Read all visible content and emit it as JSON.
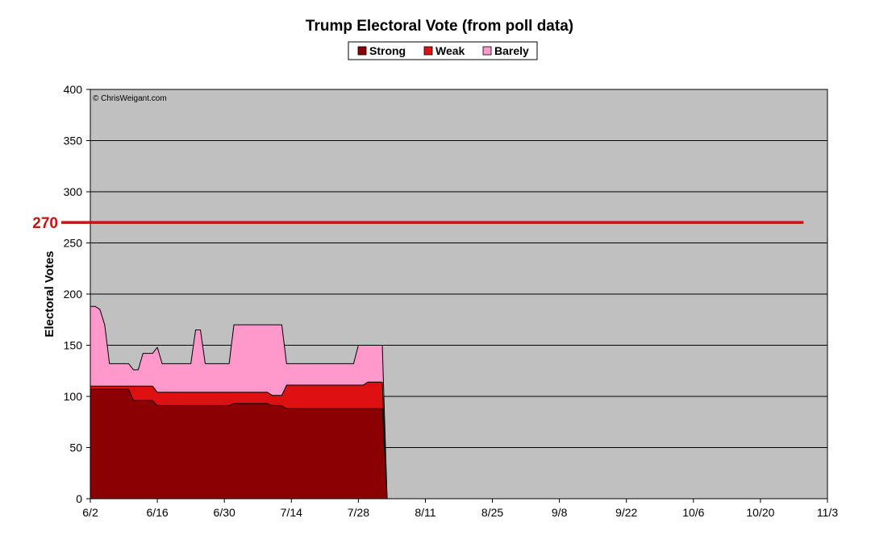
{
  "chart_data": {
    "type": "area",
    "title": "Trump Electoral Vote (from poll data)",
    "ylabel": "Electoral Votes",
    "xlabel": "",
    "watermark": "© ChrisWeigant.com",
    "ylim": [
      0,
      400
    ],
    "yticks": [
      "0",
      "50",
      "100",
      "150",
      "200",
      "250",
      "300",
      "350",
      "400"
    ],
    "xlim": [
      "2024-06-02",
      "2024-11-03"
    ],
    "xticks": [
      {
        "date": "2024-06-02",
        "label": "6/2"
      },
      {
        "date": "2024-06-16",
        "label": "6/16"
      },
      {
        "date": "2024-06-30",
        "label": "6/30"
      },
      {
        "date": "2024-07-14",
        "label": "7/14"
      },
      {
        "date": "2024-07-28",
        "label": "7/28"
      },
      {
        "date": "2024-08-11",
        "label": "8/11"
      },
      {
        "date": "2024-08-25",
        "label": "8/25"
      },
      {
        "date": "2024-09-08",
        "label": "9/8"
      },
      {
        "date": "2024-09-22",
        "label": "9/22"
      },
      {
        "date": "2024-10-06",
        "label": "10/6"
      },
      {
        "date": "2024-10-20",
        "label": "10/20"
      },
      {
        "date": "2024-11-03",
        "label": "11/3"
      }
    ],
    "stacked": true,
    "grid": true,
    "legend_position": "top",
    "reference_line": {
      "value": 270,
      "label": "270",
      "color": "#cc1111",
      "x_end": "2024-10-29"
    },
    "colors": {
      "Strong": "#8b0000",
      "Weak": "#dd1111",
      "Barely": "#ff99cc",
      "plot_background": "#c0c0c0"
    },
    "x": [
      "2024-06-02",
      "2024-06-03",
      "2024-06-04",
      "2024-06-05",
      "2024-06-06",
      "2024-06-07",
      "2024-06-08",
      "2024-06-09",
      "2024-06-10",
      "2024-06-11",
      "2024-06-12",
      "2024-06-13",
      "2024-06-14",
      "2024-06-15",
      "2024-06-16",
      "2024-06-17",
      "2024-06-18",
      "2024-06-19",
      "2024-06-20",
      "2024-06-21",
      "2024-06-22",
      "2024-06-23",
      "2024-06-24",
      "2024-06-25",
      "2024-06-26",
      "2024-06-27",
      "2024-06-28",
      "2024-06-29",
      "2024-06-30",
      "2024-07-01",
      "2024-07-02",
      "2024-07-03",
      "2024-07-04",
      "2024-07-05",
      "2024-07-06",
      "2024-07-07",
      "2024-07-08",
      "2024-07-09",
      "2024-07-10",
      "2024-07-11",
      "2024-07-12",
      "2024-07-13",
      "2024-07-14",
      "2024-07-15",
      "2024-07-16",
      "2024-07-17",
      "2024-07-18",
      "2024-07-19",
      "2024-07-20",
      "2024-07-21",
      "2024-07-22",
      "2024-07-23",
      "2024-07-24",
      "2024-07-25",
      "2024-07-26",
      "2024-07-27",
      "2024-07-28",
      "2024-07-29",
      "2024-07-30",
      "2024-07-31",
      "2024-08-01",
      "2024-08-02",
      "2024-08-03"
    ],
    "series": [
      {
        "name": "Strong",
        "values": [
          107,
          107,
          107,
          107,
          107,
          107,
          107,
          107,
          107,
          96,
          96,
          96,
          96,
          96,
          91,
          91,
          91,
          91,
          91,
          91,
          91,
          91,
          91,
          91,
          91,
          91,
          91,
          91,
          91,
          91,
          93,
          93,
          93,
          93,
          93,
          93,
          93,
          93,
          91,
          91,
          91,
          88,
          88,
          88,
          88,
          88,
          88,
          88,
          88,
          88,
          88,
          88,
          88,
          88,
          88,
          88,
          88,
          88,
          88,
          88,
          88,
          88,
          0
        ]
      },
      {
        "name": "Weak",
        "values": [
          3,
          3,
          3,
          3,
          3,
          3,
          3,
          3,
          3,
          14,
          14,
          14,
          14,
          14,
          13,
          13,
          13,
          13,
          13,
          13,
          13,
          13,
          13,
          13,
          13,
          13,
          13,
          13,
          13,
          13,
          11,
          11,
          11,
          11,
          11,
          11,
          11,
          11,
          10,
          10,
          10,
          23,
          23,
          23,
          23,
          23,
          23,
          23,
          23,
          23,
          23,
          23,
          23,
          23,
          23,
          23,
          23,
          23,
          26,
          26,
          26,
          26,
          0
        ]
      },
      {
        "name": "Barely",
        "values": [
          78,
          78,
          75,
          60,
          22,
          22,
          22,
          22,
          22,
          16,
          16,
          32,
          32,
          32,
          44,
          28,
          28,
          28,
          28,
          28,
          28,
          28,
          61,
          61,
          28,
          28,
          28,
          28,
          28,
          28,
          66,
          66,
          66,
          66,
          66,
          66,
          66,
          66,
          69,
          69,
          69,
          21,
          21,
          21,
          21,
          21,
          21,
          21,
          21,
          21,
          21,
          21,
          21,
          21,
          21,
          21,
          39,
          39,
          36,
          36,
          36,
          36,
          0
        ]
      }
    ]
  }
}
